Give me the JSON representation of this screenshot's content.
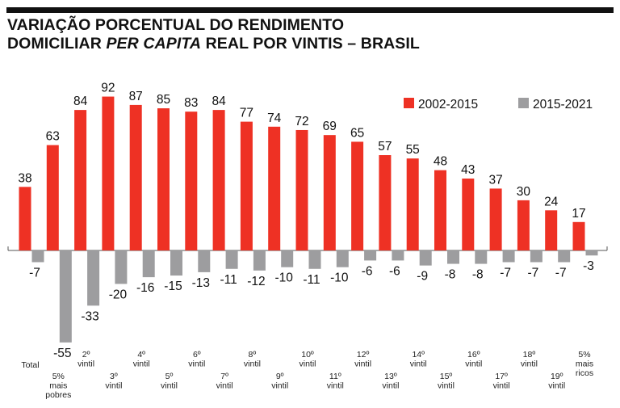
{
  "title": {
    "line1": "VARIAÇÃO PORCENTUAL DO RENDIMENTO",
    "line2_part1": "DOMICILIAR ",
    "line2_italic": "PER CAPITA",
    "line2_part2": " REAL POR VINTIS – BRASIL"
  },
  "chart_data": {
    "type": "bar",
    "title": "VARIAÇÃO PORCENTUAL DO RENDIMENTO DOMICILIAR PER CAPITA REAL POR VINTIS – BRASIL",
    "xlabel": "",
    "ylabel": "",
    "grid": false,
    "legend_position": "top-right",
    "ylim": [
      -60,
      95
    ],
    "categories": [
      [
        "Total"
      ],
      [
        "5%",
        "mais",
        "pobres"
      ],
      [
        "2º",
        "vintil"
      ],
      [
        "3º",
        "vintil"
      ],
      [
        "4º",
        "vintil"
      ],
      [
        "5º",
        "vintil"
      ],
      [
        "6º",
        "vintil"
      ],
      [
        "7º",
        "vintil"
      ],
      [
        "8º",
        "vintil"
      ],
      [
        "9º",
        "vintil"
      ],
      [
        "10º",
        "vintil"
      ],
      [
        "11º",
        "vintil"
      ],
      [
        "12º",
        "vintil"
      ],
      [
        "13º",
        "vintil"
      ],
      [
        "14º",
        "vintil"
      ],
      [
        "15º",
        "vintil"
      ],
      [
        "16º",
        "vintil"
      ],
      [
        "17º",
        "vintil"
      ],
      [
        "18º",
        "vintil"
      ],
      [
        "19º",
        "vintil"
      ],
      [
        "5%",
        "mais",
        "ricos"
      ]
    ],
    "series": [
      {
        "name": "2002-2015",
        "color": "#ee3124",
        "values": [
          38,
          63,
          84,
          92,
          87,
          85,
          83,
          84,
          77,
          74,
          72,
          69,
          65,
          57,
          55,
          48,
          43,
          37,
          30,
          24,
          17
        ]
      },
      {
        "name": "2015-2021",
        "color": "#9d9d9f",
        "values": [
          -7,
          -55,
          -33,
          -20,
          -16,
          -15,
          -13,
          -11,
          -12,
          -10,
          -11,
          -10,
          -6,
          -6,
          -9,
          -8,
          -8,
          -7,
          -7,
          -7,
          -3
        ]
      }
    ]
  }
}
